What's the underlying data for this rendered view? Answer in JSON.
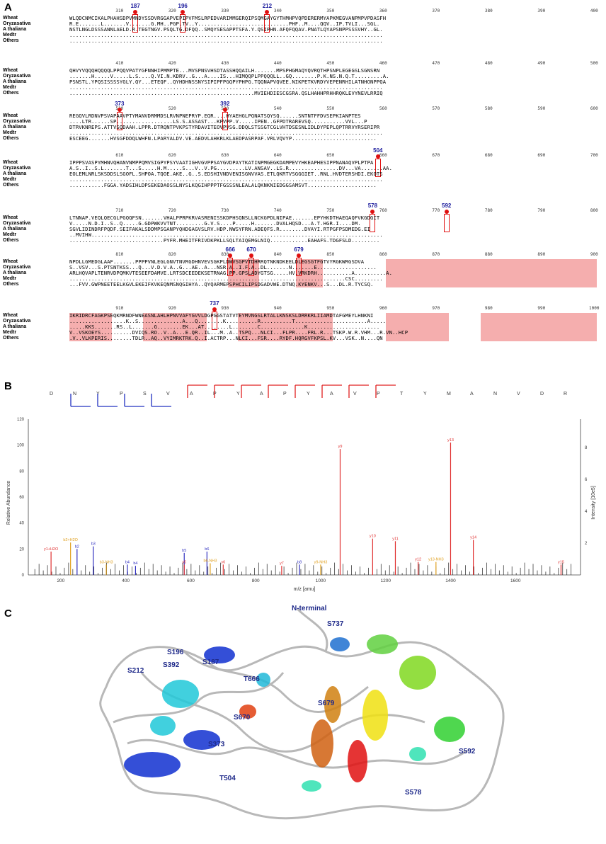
{
  "panels": {
    "a": "A",
    "b": "B",
    "c": "C"
  },
  "alignment": {
    "species": [
      "Wheat",
      "Oryzasativa",
      "A thaliana",
      "Medtr",
      "Others"
    ],
    "rows": [
      {
        "ticks": [
          "310",
          "320",
          "330",
          "340",
          "350",
          "360",
          "370",
          "380",
          "390",
          "400"
        ],
        "markers": [
          {
            "label": "187",
            "col": 12
          },
          {
            "label": "196",
            "col": 21
          },
          {
            "label": "212",
            "col": 37
          }
        ],
        "seqs": [
          "WLQDCNMCIKALPHAHSDPVMNDYSSDVRGGAPVEPIPVFMSLRPEDVARIMMGERQIPSQMGAYGYTHMHPVQPDERERMYAPKMEGVANPMPVPDASFH",
          "R.E.......L.......V.......G.MH..PGP.TV..Y.............................PHF..M....QQV..IP.TVLI...SGL.",
          "NSTLNGLDSSSANNLAELD.R.TEGTNGV.PSQLTG.DFQQ..SMQYSESAPPTSFA.Y.QSIPHN.AFQFQQAV.PNATLQYAPSNPPSSSVHY..GL.",
          "....................................................................................................",
          "...................................................................................................."
        ]
      },
      {
        "ticks": [
          "410",
          "420",
          "430",
          "440",
          "450",
          "460",
          "470",
          "480",
          "490",
          "500"
        ],
        "markers": [],
        "seqs": [
          "QHVYVQQQHQQQQLPPQQVPATYGFNNHIPMMPTE...MVSPNSVHSDTASSHQQAILH.......MPSPHGMAQYQVRQTHPSNPLEGEGSLSGNSRN",
          ".......H.....V.....L.S....Q.VI.N.KDRV..G...A....IS...HIMQQPLPPQQQLL..GQ........P.K.NS.N.Q.T.........A.",
          "PSNSTL.YPQSISSSSYGLY.QY...ETEQF..QYHDHNSSNYSIPIPFPGQPYPHPG.TQQNAPVQVEE.NIKPETKVRDYVEPENRHILATNHONPPQA",
          "....................................................................................................",
          "...........................................................MVIEHDIESCGSRA.QSLHAHHPRHHRQKLEVYNEVLRRIQ"
        ]
      },
      {
        "ticks": [
          "510",
          "520",
          "530",
          "540",
          "550",
          "560",
          "570",
          "580",
          "590",
          "600"
        ],
        "markers": [
          {
            "label": "373",
            "col": 9
          },
          {
            "label": "392",
            "col": 29
          }
        ],
        "seqs": [
          "REGQVLRDNVPSVAPAAVPTYMANVDRMMDSLRVNPNEPRYP.EQR....HYAEHGLPQNATSQYSQ......SNTNTFFDVSEPKIANPTES",
          "....LTR......SP..................LS.S.ASSAST...KPVPP.V.....IPEN..GFPDTRAREVSQ...........VVL...P",
          "DTRVKNREPS.ATTVSQDAAH.LPPR.DTRQNTPVKPSTYRDAVITEOVPVSG.DDQLSTSSGTCGLVHTDSESNLIDLDYPEPLQPTRRVYRSERIPR",
          "....................................................................................................",
          "ESCEEG.......HVSGFDDQLWHFN.LPARYALDV.VE.AEDVLAHKRLKLAEDPASRPAF.VRLVQVYP..........................."
        ]
      },
      {
        "ticks": [
          "610",
          "620",
          "630",
          "640",
          "650",
          "660",
          "670",
          "680",
          "690",
          "700"
        ],
        "markers": [
          {
            "label": "504",
            "col": 58
          }
        ],
        "seqs": [
          "IPPPSVASPYMHNVQHANVNMPPQMVSIGPYPSYVAATIGHVGVPPSAYGVDPAYTKATINPMGEGKDAMPEVYHKEAPHESIPPNANAQVPLPTPA",
          "A.S..I..S.L.......T...S.....H.M.....S...V..V.PG.........LV.ANSAV..LS.R................DV...VA.......AA.",
          "EOLEMLNRLSKSDDSLSGOFL.SHPOA.TQOE.AKE..G..S.EDSHIVNDVENISGNVVAS.ETLQKRTVSGGGIET..RNL.HVDTERSHDI.EKOTS",
          "....................................................................................................",
          "...........FGGA.YADSIHLDPSEKEDAOSSLNYSLKQGIHPPPTFGSSSNLEALALQKNKNIEDGGSAMSVT......................"
        ]
      },
      {
        "ticks": [
          "710",
          "720",
          "730",
          "740",
          "750",
          "760",
          "770",
          "780",
          "790",
          "800"
        ],
        "markers": [
          {
            "label": "578",
            "col": 57
          },
          {
            "label": "592",
            "col": 71
          }
        ],
        "seqs": [
          "LTNNAP.VEQLQECGLPGQQFSN.......VHALPPRPKRVASRENISSKDPHSQNSLLNCKGPDLNIPAE.......EPYHKDTHAEQAQFVKGDGIT",
          "V.....N.D.I..S..Q.....G.GDPWKVVTNT.........G.V.S....P.....H.......DVALHQSD...A.T.HGR.I....DM.",
          "SGVLIDINDRFPQDF.SEIFAKALSDDMPSGANPYQHDGAGVSLRV.HDP.NWSYFRN.ADEQFS.R........DVAYI.RTPGFPSDMEDG.EI",
          "..MVIHW.............................................................................................",
          "..............................PYFR.MHEITFRIVDKPKLLSQLTAIQEMGLNIQ............EAHAFS.TDGFSLD........."
        ]
      },
      {
        "ticks": [
          "810",
          "820",
          "830",
          "840",
          "850",
          "860",
          "870",
          "880",
          "890",
          "900"
        ],
        "markers": [
          {
            "label": "666",
            "col": 30
          },
          {
            "label": "670",
            "col": 34
          },
          {
            "label": "679",
            "col": 43
          }
        ],
        "seqs": [
          "NPDLLGMEDGLAAF.......PPPPVNLEGLGNVTNVRGDHNVEVSGKPLDWVSGPVTDHRRQTNKNDKEELDLEGSGTFGTVYRGKWRGSDVA",
          "S..VSV...S.PTSNTKSS...Q...V.D.V.A..G...AE..A...NSR.A..I.F.A..DL.......N.......E...................",
          "ARLHQVAPLTENRVDPQMKVTESEEFDAMVE.LRTSDCEEDEKSETRNAG.PP.GPSLADYGTSG.....HV.VRKDRH...........A..........A.",
          "........................................................................................CSC.........",
          "...FVV.GWPNEETEELKGVLEKEIFKVKEQNMSNQGIHYA..QYQARMEPSPHCILIPSDGADVWE.DTNQ.KYENKV...S...DL.R.TYCSQ."
        ]
      },
      {
        "ticks": [
          "910",
          "920",
          "930",
          "940",
          "950",
          "960",
          "970",
          "980",
          "990",
          "1000"
        ],
        "markers": [
          {
            "label": "737",
            "col": 27
          }
        ],
        "seqs": [
          "IKRIDRCFAGKPSEQKMRNDFWNEASNLAHLHPNVVAFYGVVLDGPGGSTATVTEYMVNGSLRTALLKNSKSLDRRKRLIIAMDTAFGMEYLHNKNI",
          "..................K..S..............A...Q........K..........R..........T.......................A.....",
          ".....KKS.......RS..L.......G........EK...AT........L........C..............K.......................",
          "V..VSKOEYS..........DVIQS.RO..V..A...E.QR..IL...M..A..TSPQ...NLCI...FLPR....FRL.R...TSKP.W.R.VHM...R.VN..HCP",
          ".V..VLKPERIS........TDLR..AQ..VYIMRKTRK.Q..I.ACTRP...NLCI...FSR....RYDF.HQRGVFKPSL.KV...VSK..N....QN"
        ]
      }
    ]
  },
  "spectrum": {
    "peptide": "DNYPSVAPYAPYAVPTYMANVDR",
    "xlabel": "m/z [amu]",
    "ylabel": "Relative Abundance",
    "ylabel_right": "Intensity [10e5]",
    "yticks": [
      "0",
      "20",
      "40",
      "60",
      "80",
      "100",
      "120"
    ],
    "yticks_right": [
      "2",
      "4",
      "6",
      "8"
    ],
    "xticks": [
      "200",
      "400",
      "600",
      "800",
      "1000",
      "1200",
      "1400",
      "1600"
    ],
    "peaks": [
      {
        "mz": 170,
        "rel": 18,
        "label": "y1+H2O",
        "color": "#e03030"
      },
      {
        "mz": 230,
        "rel": 25,
        "label": "b2+H2O",
        "color": "#e0a020"
      },
      {
        "mz": 250,
        "rel": 20,
        "label": "b2",
        "color": "#3030c0"
      },
      {
        "mz": 300,
        "rel": 22,
        "label": "b3",
        "color": "#3030c0"
      },
      {
        "mz": 340,
        "rel": 8,
        "label": "b3-NH3",
        "color": "#e0a020"
      },
      {
        "mz": 405,
        "rel": 8,
        "label": "b4",
        "color": "#3030c0"
      },
      {
        "mz": 430,
        "rel": 7,
        "label": "b4",
        "color": "#3030c0"
      },
      {
        "mz": 580,
        "rel": 17,
        "label": "b5",
        "color": "#3030c0"
      },
      {
        "mz": 580,
        "rel": 8,
        "label": "y5",
        "color": "#e03030"
      },
      {
        "mz": 650,
        "rel": 18,
        "label": "b6",
        "color": "#3030c0"
      },
      {
        "mz": 660,
        "rel": 9,
        "label": "b6-NH3",
        "color": "#e0a020"
      },
      {
        "mz": 700,
        "rel": 8,
        "label": "y6",
        "color": "#e03030"
      },
      {
        "mz": 880,
        "rel": 7,
        "label": "y7",
        "color": "#e03030"
      },
      {
        "mz": 935,
        "rel": 8,
        "label": "b8",
        "color": "#3030c0"
      },
      {
        "mz": 1000,
        "rel": 8,
        "label": "y9-NH3",
        "color": "#e0a020"
      },
      {
        "mz": 1060,
        "rel": 97,
        "label": "y9",
        "color": "#e03030"
      },
      {
        "mz": 1160,
        "rel": 28,
        "label": "y10",
        "color": "#e03030"
      },
      {
        "mz": 1230,
        "rel": 26,
        "label": "y11",
        "color": "#e03030"
      },
      {
        "mz": 1300,
        "rel": 10,
        "label": "y12",
        "color": "#e03030"
      },
      {
        "mz": 1355,
        "rel": 10,
        "label": "y13-NH3",
        "color": "#e0a020"
      },
      {
        "mz": 1400,
        "rel": 102,
        "label": "y13",
        "color": "#e03030"
      },
      {
        "mz": 1470,
        "rel": 27,
        "label": "y14",
        "color": "#e03030"
      },
      {
        "mz": 1740,
        "rel": 8,
        "label": "y15",
        "color": "#e03030"
      }
    ]
  },
  "structure": {
    "labels": [
      "N-terminal",
      "S196",
      "S187",
      "S212",
      "S392",
      "T666",
      "S670",
      "S679",
      "S737",
      "S373",
      "S592",
      "T504",
      "S578"
    ]
  },
  "colors": {
    "highlight": "#f29a9a",
    "marker": "#e01010",
    "marker_label": "#1a1a9c",
    "struct_label": "#1f2a8a"
  }
}
